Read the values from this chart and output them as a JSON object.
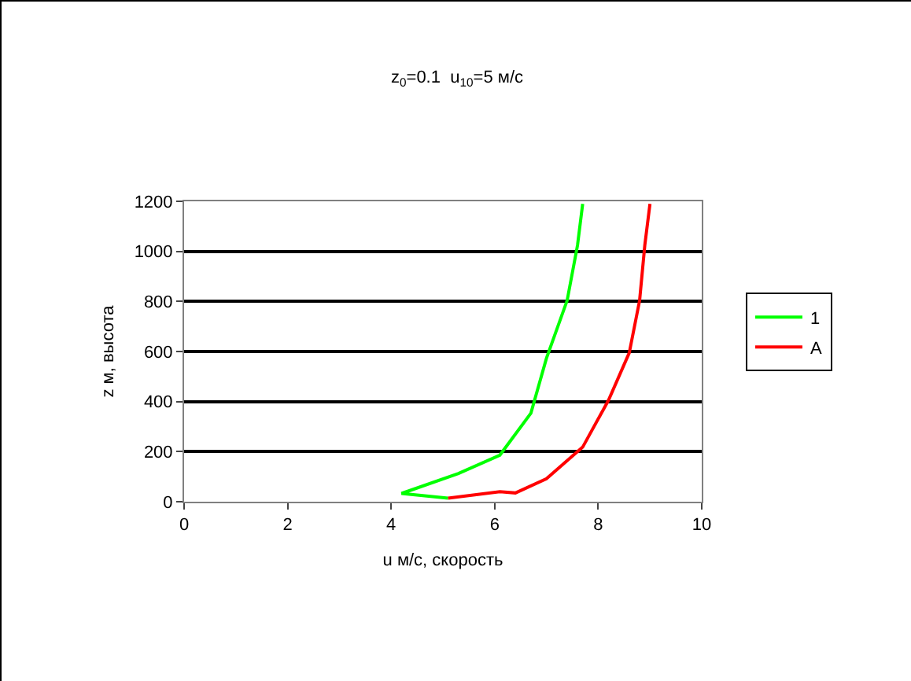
{
  "chart_data": {
    "type": "line",
    "title": "z$_{0}$=0.1  u$_{10}$=5 м/с",
    "xlabel": "u м/с, скорость",
    "ylabel": "z м, высота",
    "xlim": [
      0,
      10
    ],
    "xticks": [
      0,
      2,
      4,
      6,
      8,
      10
    ],
    "ylim": [
      0,
      1200
    ],
    "yticks": [
      0,
      200,
      400,
      600,
      800,
      1000,
      1200
    ],
    "grid": "y",
    "legend": "right",
    "marker": "none",
    "line_style": "solid",
    "series": [
      {
        "name": "1",
        "color": "#00ff00",
        "x": [
          5.1,
          4.2,
          5.3,
          6.1,
          6.7,
          7.0,
          7.4,
          7.6,
          7.7
        ],
        "values": [
          14,
          33,
          113,
          186,
          354,
          573,
          804,
          1024,
          1190
        ]
      },
      {
        "name": "A",
        "color": "#ff0000",
        "x": [
          5.1,
          6.1,
          6.4,
          7.0,
          7.7,
          8.2,
          8.6,
          8.8,
          8.9,
          9.0
        ],
        "values": [
          14,
          40,
          35,
          92,
          218,
          406,
          595,
          804,
          1024,
          1190
        ]
      }
    ]
  }
}
